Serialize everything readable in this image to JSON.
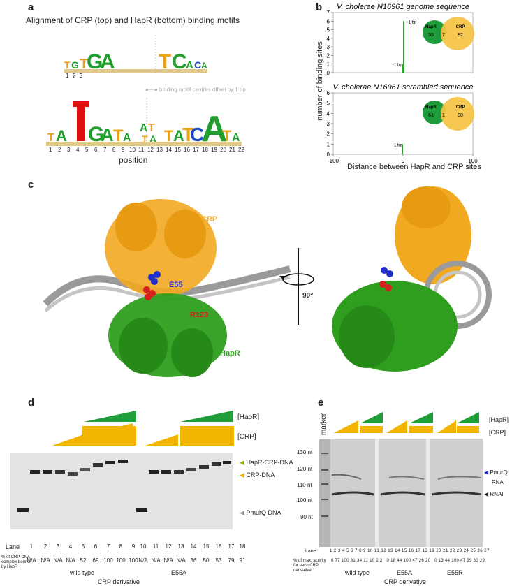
{
  "panel_a": {
    "letter": "a",
    "title": "Alignment of CRP (top) and HapR (bottom) binding motifs",
    "top_positions": [
      "1",
      "2",
      "3"
    ],
    "offset_note": "binding motif centres offset by 1 bp",
    "bottom_positions": [
      "1",
      "2",
      "3",
      "4",
      "5",
      "6",
      "7",
      "8",
      "9",
      "10",
      "11",
      "12",
      "13",
      "14",
      "15",
      "16",
      "17",
      "18",
      "19",
      "20",
      "21",
      "22"
    ],
    "xlabel": "position"
  },
  "panel_b": {
    "letter": "b",
    "ylabel": "number of binding sites",
    "xlabel": "Distance between HapR and CRP sites",
    "colors": {
      "hapr": "#1e9b3a",
      "crp": "#f5c342",
      "bar": "#2ca02c"
    }
  },
  "chart_data": [
    {
      "type": "bar",
      "title": "V. cholerae N16961 genome sequence",
      "x": [
        -1,
        1
      ],
      "values": [
        1,
        6
      ],
      "bar_labels": [
        "-1 bp",
        "+1 bp"
      ],
      "xlim": [
        -100,
        100
      ],
      "ylim": [
        0,
        7
      ],
      "yticks": [
        "0",
        "1",
        "2",
        "3",
        "4",
        "5",
        "6",
        "7"
      ],
      "venn": {
        "left_label": "HapR",
        "right_label": "CRP",
        "left_only": "55",
        "overlap": "7",
        "right_only": "82"
      }
    },
    {
      "type": "bar",
      "title": "V. cholerae N16961 scrambled sequence",
      "x": [
        -1
      ],
      "values": [
        1
      ],
      "bar_labels": [
        "-1 bp"
      ],
      "xlim": [
        -100,
        100
      ],
      "ylim": [
        0,
        6
      ],
      "yticks": [
        "0",
        "1",
        "2",
        "3",
        "4",
        "5",
        "6"
      ],
      "xticks": [
        "-100",
        "0",
        "100"
      ],
      "venn": {
        "left_label": "HapR",
        "right_label": "CRP",
        "left_only": "61",
        "overlap": "1",
        "right_only": "88"
      }
    }
  ],
  "panel_c": {
    "letter": "c",
    "crp_label": "CRP",
    "e55_label": "E55",
    "r123_label": "R123",
    "hapr_label": "HapR",
    "rotation_label": "90°",
    "colors": {
      "crp": "#f2a922",
      "hapr": "#2f9e1f",
      "dna": "#9a9a9a",
      "e55": "#2230c8",
      "r123": "#d81f1f"
    }
  },
  "panel_d": {
    "letter": "d",
    "hapr_label": "[HapR]",
    "crp_label": "[CRP]",
    "band_labels": [
      "HapR-CRP-DNA",
      "CRP-DNA",
      "PmurQ DNA"
    ],
    "lane_header": "Lane",
    "lanes": [
      "1",
      "2",
      "3",
      "4",
      "5",
      "6",
      "7",
      "8",
      "9",
      "10",
      "11",
      "12",
      "13",
      "14",
      "15",
      "16",
      "17",
      "18"
    ],
    "pct_header": "% of CRP-DNA complex bound by HapR",
    "pct_values": [
      "N/A",
      "N/A",
      "N/A",
      "N/A",
      "52",
      "69",
      "100",
      "100",
      "100",
      "N/A",
      "N/A",
      "N/A",
      "N/A",
      "36",
      "50",
      "53",
      "79",
      "91"
    ],
    "groups": [
      "wild type",
      "E55A"
    ],
    "footer": "CRP derivative"
  },
  "panel_e": {
    "letter": "e",
    "marker_label": "marker",
    "hapr_label": "[HapR]",
    "crp_label": "[CRP]",
    "size_labels": [
      "130 nt",
      "120 nt",
      "110 nt",
      "100 nt",
      "90 nt"
    ],
    "band_labels": [
      "PmurQ",
      "RNA",
      "RNAI"
    ],
    "lane_header": "Lane",
    "lanes": [
      "1",
      "2",
      "3",
      "4",
      "5",
      "6",
      "7",
      "8",
      "9",
      "10",
      "11",
      "12",
      "13",
      "14",
      "15",
      "16",
      "17",
      "18",
      "19",
      "20",
      "21",
      "22",
      "23",
      "24",
      "25",
      "26",
      "27"
    ],
    "pct_header": "% of max. activity for each CRP derivative",
    "pct_values": [
      "0",
      "77",
      "100",
      "81",
      "34",
      "11",
      "10",
      "2",
      "2",
      "0",
      "18",
      "44",
      "100",
      "47",
      "26",
      "20",
      "0",
      "13",
      "44",
      "100",
      "47",
      "39",
      "30",
      "29"
    ],
    "groups": [
      "wild type",
      "E55A",
      "E55R"
    ],
    "footer": "CRP derivative"
  }
}
